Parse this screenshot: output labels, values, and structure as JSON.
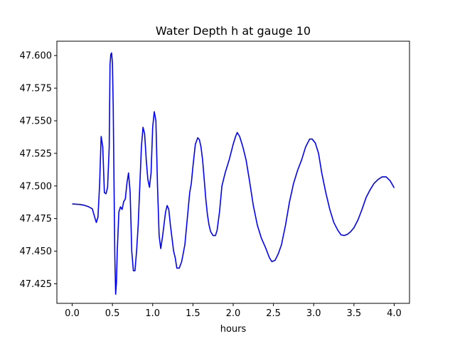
{
  "chart_data": {
    "type": "line",
    "title": "Water Depth h at gauge 10",
    "xlabel": "hours",
    "ylabel": "",
    "xlim": [
      -0.19,
      4.19
    ],
    "ylim": [
      47.41,
      47.611
    ],
    "xticks": [
      0.0,
      0.5,
      1.0,
      1.5,
      2.0,
      2.5,
      3.0,
      3.5,
      4.0
    ],
    "xtick_labels": [
      "0.0",
      "0.5",
      "1.0",
      "1.5",
      "2.0",
      "2.5",
      "3.0",
      "3.5",
      "4.0"
    ],
    "yticks": [
      47.425,
      47.45,
      47.475,
      47.5,
      47.525,
      47.55,
      47.575,
      47.6
    ],
    "ytick_labels": [
      "47.425",
      "47.450",
      "47.475",
      "47.500",
      "47.525",
      "47.550",
      "47.575",
      "47.600"
    ],
    "grid": false,
    "line_color": "#0000ff",
    "series": [
      {
        "x": [
          0.0,
          0.05,
          0.1,
          0.15,
          0.2,
          0.25,
          0.28,
          0.3,
          0.32,
          0.34,
          0.36,
          0.38,
          0.4,
          0.42,
          0.44,
          0.46,
          0.47,
          0.48,
          0.49,
          0.5,
          0.51,
          0.52,
          0.53,
          0.54,
          0.55,
          0.56,
          0.58,
          0.6,
          0.62,
          0.64,
          0.66,
          0.68,
          0.7,
          0.72,
          0.74,
          0.76,
          0.78,
          0.8,
          0.82,
          0.84,
          0.86,
          0.88,
          0.9,
          0.92,
          0.94,
          0.96,
          0.98,
          1.0,
          1.02,
          1.04,
          1.06,
          1.08,
          1.1,
          1.12,
          1.14,
          1.16,
          1.18,
          1.2,
          1.22,
          1.24,
          1.26,
          1.28,
          1.3,
          1.33,
          1.36,
          1.4,
          1.43,
          1.46,
          1.48,
          1.5,
          1.53,
          1.56,
          1.58,
          1.6,
          1.62,
          1.64,
          1.66,
          1.68,
          1.7,
          1.72,
          1.75,
          1.78,
          1.8,
          1.83,
          1.86,
          1.9,
          1.95,
          2.0,
          2.03,
          2.05,
          2.08,
          2.12,
          2.16,
          2.2,
          2.25,
          2.3,
          2.35,
          2.4,
          2.45,
          2.48,
          2.52,
          2.56,
          2.6,
          2.65,
          2.7,
          2.75,
          2.8,
          2.85,
          2.9,
          2.95,
          2.98,
          3.02,
          3.06,
          3.1,
          3.15,
          3.2,
          3.25,
          3.3,
          3.34,
          3.38,
          3.42,
          3.46,
          3.5,
          3.55,
          3.6,
          3.65,
          3.7,
          3.75,
          3.8,
          3.85,
          3.9,
          3.95,
          4.0
        ],
        "y": [
          47.4862,
          47.486,
          47.4858,
          47.4852,
          47.4842,
          47.4825,
          47.476,
          47.472,
          47.476,
          47.5,
          47.538,
          47.53,
          47.495,
          47.494,
          47.499,
          47.53,
          47.593,
          47.601,
          47.602,
          47.594,
          47.56,
          47.5,
          47.445,
          47.417,
          47.426,
          47.45,
          47.48,
          47.484,
          47.482,
          47.488,
          47.49,
          47.502,
          47.51,
          47.495,
          47.45,
          47.435,
          47.435,
          47.45,
          47.47,
          47.5,
          47.53,
          47.545,
          47.54,
          47.52,
          47.505,
          47.499,
          47.51,
          47.545,
          47.557,
          47.55,
          47.5,
          47.462,
          47.452,
          47.46,
          47.47,
          47.48,
          47.485,
          47.482,
          47.47,
          47.46,
          47.45,
          47.445,
          47.437,
          47.437,
          47.442,
          47.455,
          47.475,
          47.495,
          47.502,
          47.515,
          47.532,
          47.537,
          47.5355,
          47.53,
          47.52,
          47.505,
          47.49,
          47.478,
          47.47,
          47.465,
          47.462,
          47.462,
          47.466,
          47.48,
          47.5,
          47.51,
          47.52,
          47.532,
          47.538,
          47.541,
          47.538,
          47.53,
          47.52,
          47.505,
          47.485,
          47.47,
          47.46,
          47.453,
          47.445,
          47.442,
          47.443,
          47.448,
          47.455,
          47.47,
          47.488,
          47.502,
          47.512,
          47.52,
          47.53,
          47.536,
          47.536,
          47.533,
          47.525,
          47.51,
          47.495,
          47.482,
          47.472,
          47.466,
          47.4625,
          47.462,
          47.463,
          47.465,
          47.468,
          47.474,
          47.482,
          47.491,
          47.497,
          47.502,
          47.505,
          47.507,
          47.507,
          47.504,
          47.4985
        ]
      }
    ]
  }
}
